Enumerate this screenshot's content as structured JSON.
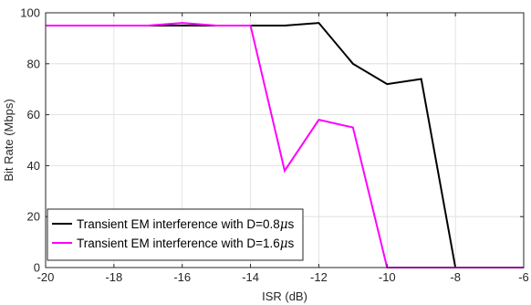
{
  "chart_data": {
    "type": "line",
    "title": "",
    "xlabel": "ISR (dB)",
    "ylabel": "Bit Rate (Mbps)",
    "xlim": [
      -20,
      -6
    ],
    "ylim": [
      0,
      100
    ],
    "xticks": [
      -20,
      -18,
      -16,
      -14,
      -12,
      -10,
      -8,
      -6
    ],
    "yticks": [
      0,
      20,
      40,
      60,
      80,
      100
    ],
    "grid": true,
    "legend_position": "bottom-left",
    "series": [
      {
        "name_prefix": "Transient EM interference with D=0.8",
        "name_unit": "s",
        "color": "#000000",
        "x": [
          -20,
          -19,
          -18,
          -17,
          -16,
          -15,
          -14,
          -13,
          -12,
          -11,
          -10,
          -9,
          -8,
          -7,
          -6
        ],
        "y": [
          95,
          95,
          95,
          95,
          95,
          95,
          95,
          95,
          96,
          80,
          72,
          74,
          0,
          0,
          0
        ]
      },
      {
        "name_prefix": "Transient EM interference with D=1.6",
        "name_unit": "s",
        "color": "#ff00ff",
        "x": [
          -20,
          -19,
          -18,
          -17,
          -16,
          -15,
          -14,
          -13,
          -12,
          -11,
          -10,
          -9,
          -8,
          -7,
          -6
        ],
        "y": [
          95,
          95,
          95,
          95,
          96,
          95,
          95,
          38,
          58,
          55,
          0,
          0,
          0,
          0,
          0
        ]
      }
    ]
  }
}
